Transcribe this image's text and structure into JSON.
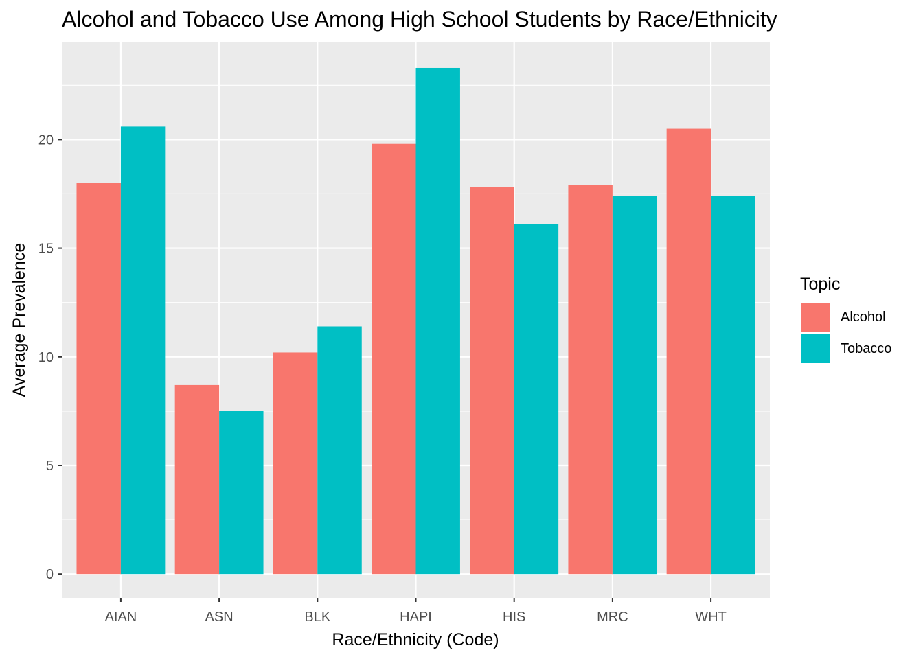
{
  "chart_data": {
    "type": "bar",
    "title": "Alcohol and Tobacco Use Among High School Students by Race/Ethnicity",
    "xlabel": "Race/Ethnicity (Code)",
    "ylabel": "Average Prevalence",
    "categories": [
      "AIAN",
      "ASN",
      "BLK",
      "HAPI",
      "HIS",
      "MRC",
      "WHT"
    ],
    "series": [
      {
        "name": "Alcohol",
        "color": "#F8766D",
        "values": [
          18.0,
          8.7,
          10.2,
          19.8,
          17.8,
          17.9,
          20.5
        ]
      },
      {
        "name": "Tobacco",
        "color": "#00BFC4",
        "values": [
          20.6,
          7.5,
          11.4,
          23.3,
          16.1,
          17.4,
          17.4
        ]
      }
    ],
    "ylim": [
      -1.1,
      24.5
    ],
    "yticks": [
      0,
      5,
      10,
      15,
      20
    ],
    "grid": true,
    "legend": {
      "title": "Topic",
      "position": "right"
    }
  }
}
